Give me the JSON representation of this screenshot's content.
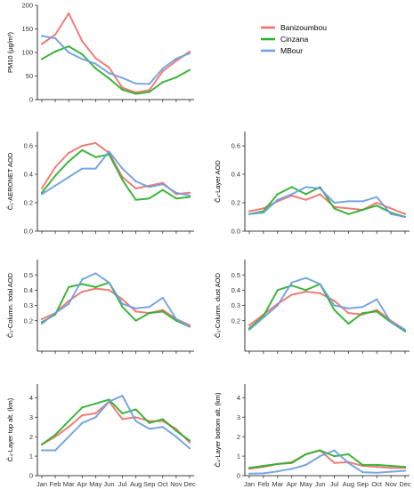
{
  "colors": {
    "Banizoumbou": "#f0716b",
    "Cinzana": "#2bb02b",
    "MBour": "#6d9ee0"
  },
  "legend": {
    "placement": "top-right",
    "entries": [
      "Banizoumbou",
      "Cinzana",
      "MBour"
    ]
  },
  "chart_data": [
    {
      "type": "line",
      "ylabel": "PM10 (µg/m³)",
      "categories": [
        "Jan",
        "Feb",
        "Mar",
        "Apr",
        "May",
        "Jun",
        "Jul",
        "Aug",
        "Sep",
        "Oct",
        "Nov",
        "Dec"
      ],
      "ylim": [
        0,
        200
      ],
      "yticks": [
        0,
        50,
        100,
        150,
        200
      ],
      "yticklabels": [
        "0",
        "50",
        "100",
        "150",
        "200"
      ],
      "show_xticklabels": false,
      "grid": false,
      "series": [
        {
          "name": "Banizoumbou",
          "values": [
            118,
            138,
            183,
            124,
            88,
            68,
            25,
            15,
            20,
            60,
            82,
            102
          ]
        },
        {
          "name": "Cinzana",
          "values": [
            86,
            102,
            113,
            96,
            66,
            45,
            21,
            12,
            16,
            37,
            47,
            63
          ]
        },
        {
          "name": "MBour",
          "values": [
            135,
            130,
            100,
            86,
            76,
            56,
            46,
            34,
            33,
            66,
            87,
            98
          ]
        }
      ]
    },
    {
      "type": "line",
      "ylabel": "Ĉ₁-AERONET AOD",
      "categories": [
        "Jan",
        "Feb",
        "Mar",
        "Apr",
        "May",
        "Jun",
        "Jul",
        "Aug",
        "Sep",
        "Oct",
        "Nov",
        "Dec"
      ],
      "ylim": [
        0,
        0.7
      ],
      "yticks": [
        0,
        0.2,
        0.4,
        0.6
      ],
      "yticklabels": [
        "0.0",
        "0.2",
        "0.4",
        "0.6"
      ],
      "show_xticklabels": false,
      "grid": false,
      "series": [
        {
          "name": "Banizoumbou",
          "values": [
            0.3,
            0.45,
            0.55,
            0.6,
            0.62,
            0.55,
            0.38,
            0.3,
            0.32,
            0.34,
            0.26,
            0.27
          ]
        },
        {
          "name": "Cinzana",
          "values": [
            0.27,
            0.39,
            0.49,
            0.57,
            0.52,
            0.54,
            0.36,
            0.22,
            0.23,
            0.29,
            0.23,
            0.24
          ]
        },
        {
          "name": "MBour",
          "values": [
            0.26,
            0.32,
            0.38,
            0.44,
            0.44,
            0.56,
            0.44,
            0.35,
            0.31,
            0.33,
            0.27,
            0.25
          ]
        }
      ]
    },
    {
      "type": "line",
      "ylabel": "Ĉ₄-Layer AOD",
      "categories": [
        "Jan",
        "Feb",
        "Mar",
        "Apr",
        "May",
        "Jun",
        "Jul",
        "Aug",
        "Sep",
        "Oct",
        "Nov",
        "Dec"
      ],
      "ylim": [
        0,
        0.7
      ],
      "yticks": [
        0,
        0.2,
        0.4,
        0.6
      ],
      "yticklabels": [
        "0.0",
        "0.2",
        "0.4",
        "0.6"
      ],
      "show_xticklabels": false,
      "grid": false,
      "series": [
        {
          "name": "Banizoumbou",
          "values": [
            0.14,
            0.16,
            0.21,
            0.25,
            0.22,
            0.26,
            0.17,
            0.16,
            0.15,
            0.2,
            0.16,
            0.12
          ]
        },
        {
          "name": "Cinzana",
          "values": [
            0.12,
            0.14,
            0.26,
            0.31,
            0.26,
            0.31,
            0.16,
            0.12,
            0.15,
            0.18,
            0.13,
            0.1
          ]
        },
        {
          "name": "MBour",
          "values": [
            0.12,
            0.13,
            0.22,
            0.26,
            0.31,
            0.3,
            0.2,
            0.21,
            0.21,
            0.24,
            0.12,
            0.1
          ]
        }
      ]
    },
    {
      "type": "line",
      "ylabel": "Ĉ₃-Column. total AOD",
      "categories": [
        "Jan",
        "Feb",
        "Mar",
        "Apr",
        "May",
        "Jun",
        "Jul",
        "Aug",
        "Sep",
        "Oct",
        "Nov",
        "Dec"
      ],
      "ylim": [
        0,
        0.6
      ],
      "yticks": [
        0.2,
        0.3,
        0.4,
        0.5
      ],
      "yticklabels": [
        "0.2",
        "0.3",
        "0.4",
        "0.5"
      ],
      "show_xticklabels": false,
      "grid": false,
      "series": [
        {
          "name": "Banizoumbou",
          "values": [
            0.21,
            0.25,
            0.33,
            0.39,
            0.41,
            0.4,
            0.34,
            0.26,
            0.25,
            0.27,
            0.21,
            0.17
          ]
        },
        {
          "name": "Cinzana",
          "values": [
            0.19,
            0.24,
            0.42,
            0.44,
            0.42,
            0.45,
            0.29,
            0.2,
            0.25,
            0.26,
            0.2,
            0.16
          ]
        },
        {
          "name": "MBour",
          "values": [
            0.18,
            0.25,
            0.31,
            0.47,
            0.51,
            0.45,
            0.31,
            0.28,
            0.29,
            0.35,
            0.21,
            0.16
          ]
        }
      ]
    },
    {
      "type": "line",
      "ylabel": "Ĉ₃-Column. dust AOD",
      "categories": [
        "Jan",
        "Feb",
        "Mar",
        "Apr",
        "May",
        "Jun",
        "Jul",
        "Aug",
        "Sep",
        "Oct",
        "Nov",
        "Dec"
      ],
      "ylim": [
        0,
        0.6
      ],
      "yticks": [
        0.2,
        0.3,
        0.4,
        0.5
      ],
      "yticklabels": [
        "0.2",
        "0.3",
        "0.4",
        "0.5"
      ],
      "show_xticklabels": false,
      "grid": false,
      "series": [
        {
          "name": "Banizoumbou",
          "values": [
            0.17,
            0.24,
            0.31,
            0.37,
            0.39,
            0.38,
            0.33,
            0.25,
            0.24,
            0.27,
            0.2,
            0.14
          ]
        },
        {
          "name": "Cinzana",
          "values": [
            0.15,
            0.23,
            0.4,
            0.43,
            0.4,
            0.44,
            0.27,
            0.18,
            0.25,
            0.26,
            0.19,
            0.13
          ]
        },
        {
          "name": "MBour",
          "values": [
            0.14,
            0.22,
            0.3,
            0.45,
            0.48,
            0.44,
            0.3,
            0.28,
            0.29,
            0.34,
            0.19,
            0.14
          ]
        }
      ]
    },
    {
      "type": "line",
      "ylabel": "Ĉ₄-Layer top alt. (km)",
      "categories": [
        "Jan",
        "Feb",
        "Mar",
        "Apr",
        "May",
        "Jun",
        "Jul",
        "Aug",
        "Sep",
        "Oct",
        "Nov",
        "Dec"
      ],
      "ylim": [
        0,
        4.7
      ],
      "yticks": [
        0,
        1,
        2,
        3,
        4
      ],
      "yticklabels": [
        "0",
        "1",
        "2",
        "3",
        "4"
      ],
      "show_xticklabels": true,
      "grid": false,
      "series": [
        {
          "name": "Banizoumbou",
          "values": [
            1.6,
            2.0,
            2.5,
            3.1,
            3.2,
            3.8,
            2.9,
            3.0,
            2.8,
            2.8,
            2.4,
            1.7
          ]
        },
        {
          "name": "Cinzana",
          "values": [
            1.6,
            2.1,
            2.8,
            3.5,
            3.7,
            3.9,
            3.2,
            3.4,
            2.7,
            2.9,
            2.3,
            1.8
          ]
        },
        {
          "name": "MBour",
          "values": [
            1.3,
            1.3,
            2.0,
            2.7,
            3.0,
            3.8,
            4.1,
            2.8,
            2.4,
            2.5,
            2.0,
            1.4
          ]
        }
      ]
    },
    {
      "type": "line",
      "ylabel": "Ĉ₄-Layer bottom alt. (km)",
      "categories": [
        "Jan",
        "Feb",
        "Mar",
        "Apr",
        "May",
        "Jun",
        "Jul",
        "Aug",
        "Sep",
        "Oct",
        "Nov",
        "Dec"
      ],
      "ylim": [
        0,
        4.7
      ],
      "yticks": [
        0,
        1,
        2,
        3,
        4
      ],
      "yticklabels": [
        "0",
        "1",
        "2",
        "3",
        "4"
      ],
      "show_xticklabels": true,
      "grid": false,
      "series": [
        {
          "name": "Banizoumbou",
          "values": [
            0.35,
            0.45,
            0.6,
            0.7,
            1.1,
            1.3,
            0.65,
            0.7,
            0.5,
            0.45,
            0.4,
            0.4
          ]
        },
        {
          "name": "Cinzana",
          "values": [
            0.4,
            0.5,
            0.6,
            0.65,
            1.1,
            1.3,
            1.0,
            1.1,
            0.55,
            0.55,
            0.5,
            0.45
          ]
        },
        {
          "name": "MBour",
          "values": [
            0.1,
            0.12,
            0.22,
            0.35,
            0.55,
            1.0,
            1.3,
            0.65,
            0.18,
            0.15,
            0.2,
            0.25
          ]
        }
      ]
    }
  ]
}
